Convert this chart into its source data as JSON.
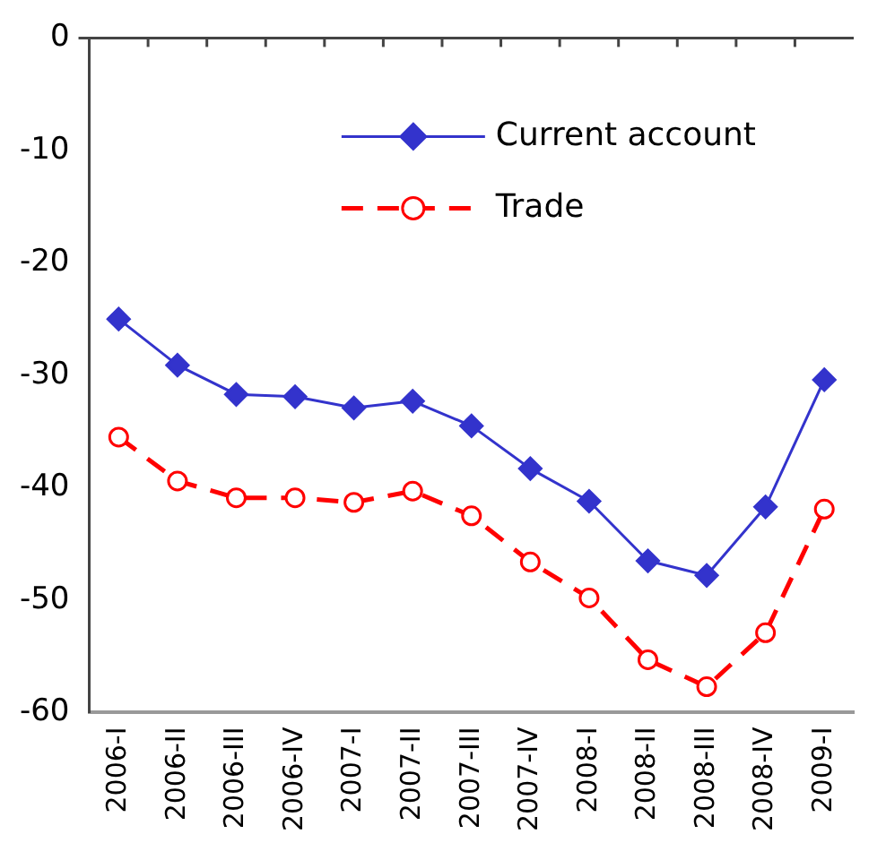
{
  "chart_data": {
    "type": "line",
    "categories": [
      "2006-I",
      "2006-II",
      "2006-III",
      "2006-IV",
      "2007-I",
      "2007-II",
      "2007-III",
      "2007-IV",
      "2008-I",
      "2008-II",
      "2008-III",
      "2008-IV",
      "2009-I"
    ],
    "series": [
      {
        "name": "Current account",
        "color": "#3333cc",
        "marker": "diamond",
        "line_style": "solid",
        "values": [
          -25.0,
          -29.1,
          -31.7,
          -31.9,
          -32.9,
          -32.3,
          -34.5,
          -38.3,
          -41.2,
          -46.5,
          -47.8,
          -41.7,
          -30.4
        ]
      },
      {
        "name": "Trade",
        "color": "#ff0000",
        "marker": "circle",
        "line_style": "dashed",
        "values": [
          -35.5,
          -39.4,
          -40.9,
          -40.9,
          -41.3,
          -40.3,
          -42.5,
          -46.6,
          -49.8,
          -55.3,
          -57.7,
          -52.9,
          -41.9
        ]
      }
    ],
    "ylim": [
      -60,
      0
    ],
    "yticks": [
      -60,
      -50,
      -40,
      -30,
      -20,
      -10,
      0
    ],
    "grid": false,
    "legend": "top right"
  }
}
